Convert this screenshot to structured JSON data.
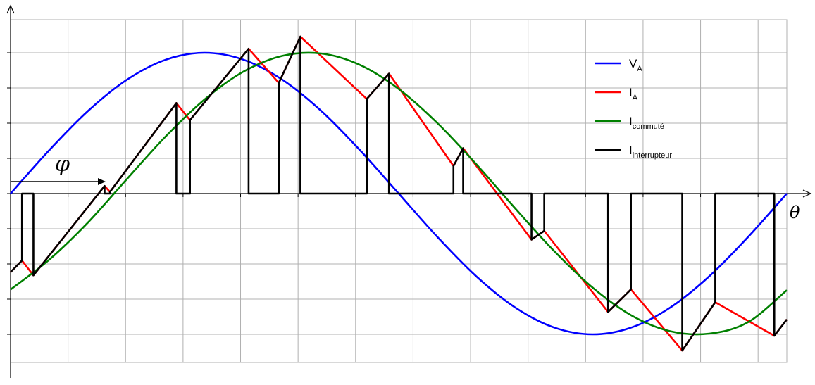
{
  "chart_data": {
    "type": "line",
    "title": "",
    "xlabel": "θ",
    "ylabel": "",
    "grid": true,
    "legend_position": "top-right",
    "xlim": [
      0,
      360
    ],
    "ylim": [
      -1.1,
      1.1
    ],
    "phase_label": "φ",
    "series": [
      {
        "name": "V",
        "subscript": "A",
        "color": "#0000ff",
        "x": [
          0,
          18,
          36,
          54,
          72,
          90,
          108,
          126,
          144,
          162,
          180,
          198,
          216,
          234,
          252,
          270,
          288,
          306,
          324,
          342,
          360
        ],
        "y": [
          0,
          0.309,
          0.588,
          0.809,
          0.951,
          1.0,
          0.951,
          0.809,
          0.588,
          0.309,
          0,
          -0.309,
          -0.588,
          -0.809,
          -0.951,
          -1.0,
          -0.951,
          -0.809,
          -0.588,
          -0.309,
          0
        ]
      },
      {
        "name": "I",
        "subscript": "A",
        "color": "#ff0000",
        "x": [
          0,
          5.3,
          10.6,
          43.6,
          46.1,
          76.9,
          83.2,
          110.4,
          124.4,
          134.4,
          165.2,
          175.5,
          205.4,
          209.9,
          241.6,
          247.5,
          277.1,
          287.7,
          311.5,
          326.8,
          354.2,
          360
        ],
        "y": [
          -0.558,
          -0.476,
          -0.581,
          0.054,
          0.012,
          0.643,
          0.522,
          1.029,
          0.786,
          1.115,
          0.672,
          0.852,
          0.196,
          0.322,
          -0.327,
          -0.265,
          -0.841,
          -0.681,
          -1.115,
          -0.772,
          -1.01,
          -0.894
        ]
      },
      {
        "name": "I",
        "subscript": "commuté",
        "color": "#008000",
        "x": [
          0,
          18,
          36,
          54,
          72,
          90,
          108,
          126,
          144,
          162,
          180,
          198,
          216,
          234,
          252,
          270,
          288,
          306,
          324,
          342,
          360
        ],
        "y": [
          -0.682,
          -0.469,
          -0.204,
          0.104,
          0.407,
          0.669,
          0.866,
          0.978,
          0.995,
          0.914,
          0.743,
          0.5,
          0.208,
          -0.105,
          -0.407,
          -0.669,
          -0.866,
          -0.978,
          -0.995,
          -0.914,
          -0.686
        ]
      },
      {
        "name": "I",
        "subscript": "interrupteur",
        "color": "#000000",
        "x": [
          0,
          5.3,
          5.3,
          10.6,
          10.6,
          43.6,
          43.6,
          46.1,
          46.1,
          76.9,
          76.9,
          83.2,
          83.2,
          110.4,
          110.4,
          124.4,
          124.4,
          134.4,
          134.4,
          165.2,
          165.2,
          175.5,
          175.5,
          205.4,
          205.4,
          209.9,
          209.9,
          241.6,
          241.6,
          247.5,
          247.5,
          277.1,
          277.1,
          287.7,
          287.7,
          311.5,
          311.5,
          326.8,
          326.8,
          354.2,
          354.2,
          360
        ],
        "y": [
          -0.558,
          -0.476,
          0,
          0,
          -0.581,
          0.054,
          0,
          0,
          0.012,
          0.643,
          0,
          0,
          0.522,
          1.029,
          0,
          0,
          0.786,
          1.115,
          0,
          0,
          0.672,
          0.852,
          0,
          0,
          0.196,
          0.322,
          0,
          0,
          -0.327,
          -0.265,
          0,
          0,
          -0.841,
          -0.681,
          0,
          0,
          -1.115,
          -0.772,
          0,
          0,
          -1.01,
          -0.894
        ]
      }
    ]
  }
}
